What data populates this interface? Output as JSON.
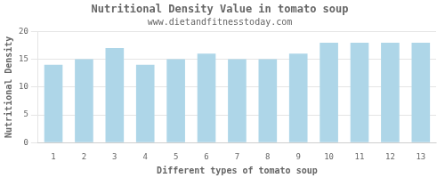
{
  "chart_data": {
    "type": "bar",
    "title": "Nutritional Density Value in tomato soup",
    "subtitle": "www.dietandfitnesstoday.com",
    "xlabel": "Different types of tomato soup",
    "ylabel": "Nutritional Density",
    "categories": [
      1,
      2,
      3,
      4,
      5,
      6,
      7,
      8,
      9,
      10,
      11,
      12,
      13
    ],
    "values": [
      14,
      15,
      17,
      14,
      15,
      16,
      15,
      15,
      16,
      18,
      18,
      18,
      18
    ],
    "color": "#aed6e8",
    "ylim": [
      0,
      20
    ],
    "yticks": [
      0,
      5,
      10,
      15,
      20
    ],
    "grid": true
  }
}
